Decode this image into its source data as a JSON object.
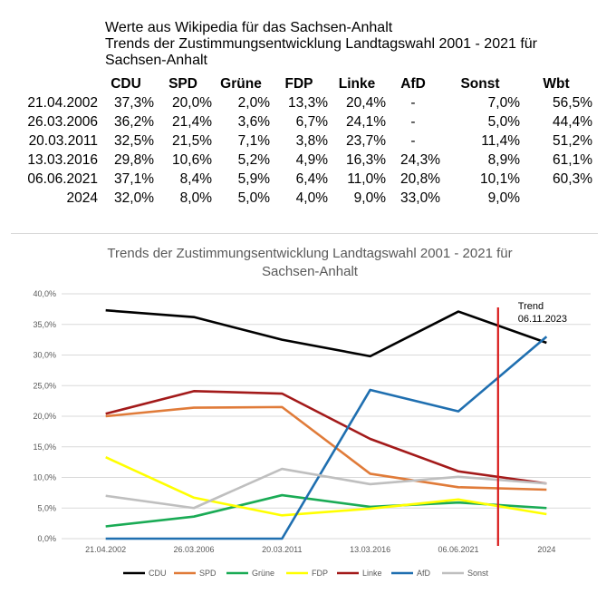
{
  "header": {
    "line1": "Werte aus Wikipedia für das Sachsen-Anhalt",
    "line2": "Trends der Zustimmungsentwicklung Landtagswahl 2001 - 2021 für",
    "line3": "Sachsen-Anhalt"
  },
  "table": {
    "columns": [
      "CDU",
      "SPD",
      "Grüne",
      "FDP",
      "Linke",
      "AfD",
      "Sonst",
      "Wbt"
    ],
    "rows": [
      {
        "date": "21.04.2002",
        "cells": [
          "37,3%",
          "20,0%",
          "2,0%",
          "13,3%",
          "20,4%",
          "-",
          "7,0%",
          "56,5%"
        ]
      },
      {
        "date": "26.03.2006",
        "cells": [
          "36,2%",
          "21,4%",
          "3,6%",
          "6,7%",
          "24,1%",
          "-",
          "5,0%",
          "44,4%"
        ]
      },
      {
        "date": "20.03.2011",
        "cells": [
          "32,5%",
          "21,5%",
          "7,1%",
          "3,8%",
          "23,7%",
          "-",
          "11,4%",
          "51,2%"
        ]
      },
      {
        "date": "13.03.2016",
        "cells": [
          "29,8%",
          "10,6%",
          "5,2%",
          "4,9%",
          "16,3%",
          "24,3%",
          "8,9%",
          "61,1%"
        ]
      },
      {
        "date": "06.06.2021",
        "cells": [
          "37,1%",
          "8,4%",
          "5,9%",
          "6,4%",
          "11,0%",
          "20,8%",
          "10,1%",
          "60,3%"
        ]
      },
      {
        "date": "2024",
        "cells": [
          "32,0%",
          "8,0%",
          "5,0%",
          "4,0%",
          "9,0%",
          "33,0%",
          "9,0%",
          ""
        ]
      }
    ]
  },
  "chart_data": {
    "type": "line",
    "title_line1": "Trends der Zustimmungsentwicklung Landtagswahl 2001 - 2021 für",
    "title_line2": "Sachsen-Anhalt",
    "categories": [
      "21.04.2002",
      "26.03.2006",
      "20.03.2011",
      "13.03.2016",
      "06.06.2021",
      "2024"
    ],
    "ylim": [
      0,
      40
    ],
    "yticks": [
      0,
      5,
      10,
      15,
      20,
      25,
      30,
      35,
      40
    ],
    "ytick_labels": [
      "0,0%",
      "5,0%",
      "10,0%",
      "15,0%",
      "20,0%",
      "25,0%",
      "30,0%",
      "35,0%",
      "40,0%"
    ],
    "grid": true,
    "legend_position": "bottom",
    "series": [
      {
        "name": "CDU",
        "color": "#000000",
        "values": [
          37.3,
          36.2,
          32.5,
          29.8,
          37.1,
          32.0
        ]
      },
      {
        "name": "SPD",
        "color": "#e07b39",
        "values": [
          20.0,
          21.4,
          21.5,
          10.6,
          8.4,
          8.0
        ]
      },
      {
        "name": "Grüne",
        "color": "#1aab55",
        "values": [
          2.0,
          3.6,
          7.1,
          5.2,
          5.9,
          5.0
        ]
      },
      {
        "name": "FDP",
        "color": "#ffff00",
        "values": [
          13.3,
          6.7,
          3.8,
          4.9,
          6.4,
          4.0
        ]
      },
      {
        "name": "Linke",
        "color": "#a31a1a",
        "values": [
          20.4,
          24.1,
          23.7,
          16.3,
          11.0,
          9.0
        ]
      },
      {
        "name": "AfD",
        "color": "#1f6fb0",
        "values": [
          0,
          0,
          0,
          24.3,
          20.8,
          33.0
        ]
      },
      {
        "name": "Sonst",
        "color": "#bfbfbf",
        "values": [
          7.0,
          5.0,
          11.4,
          8.9,
          10.1,
          9.0
        ]
      }
    ],
    "trend_marker": {
      "label_line1": "Trend",
      "label_line2": "06.11.2023",
      "color": "#d91a1a",
      "x_between": [
        4,
        5
      ],
      "fraction": 0.45
    }
  }
}
